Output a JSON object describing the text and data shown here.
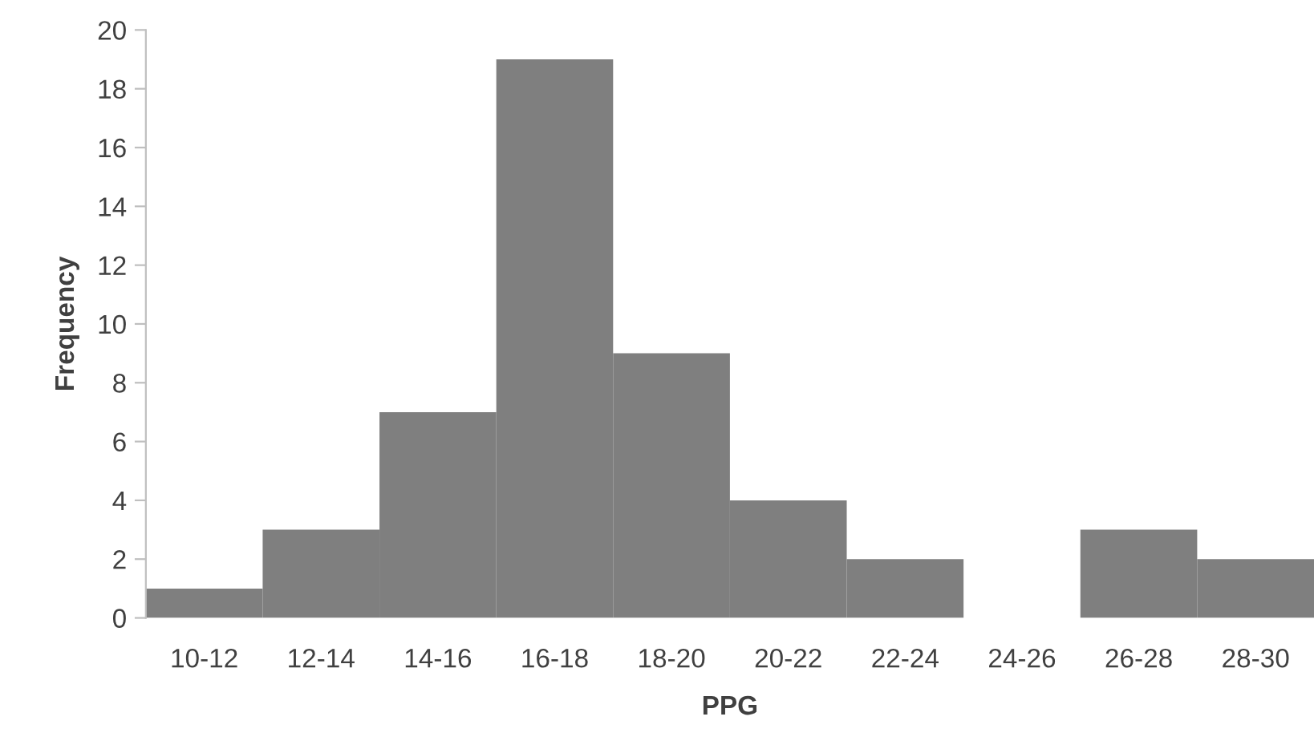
{
  "chart_data": {
    "type": "bar",
    "xlabel": "PPG",
    "ylabel": "Frequency",
    "categories": [
      "10-12",
      "12-14",
      "14-16",
      "16-18",
      "18-20",
      "20-22",
      "22-24",
      "24-26",
      "26-28",
      "28-30"
    ],
    "values": [
      1,
      3,
      7,
      19,
      9,
      4,
      2,
      0,
      3,
      2
    ],
    "color": "#7f7f7f",
    "ylim": [
      0,
      20
    ],
    "yticks": [
      0,
      2,
      4,
      6,
      8,
      10,
      12,
      14,
      16,
      18,
      20
    ],
    "grid": false,
    "legend": false
  }
}
